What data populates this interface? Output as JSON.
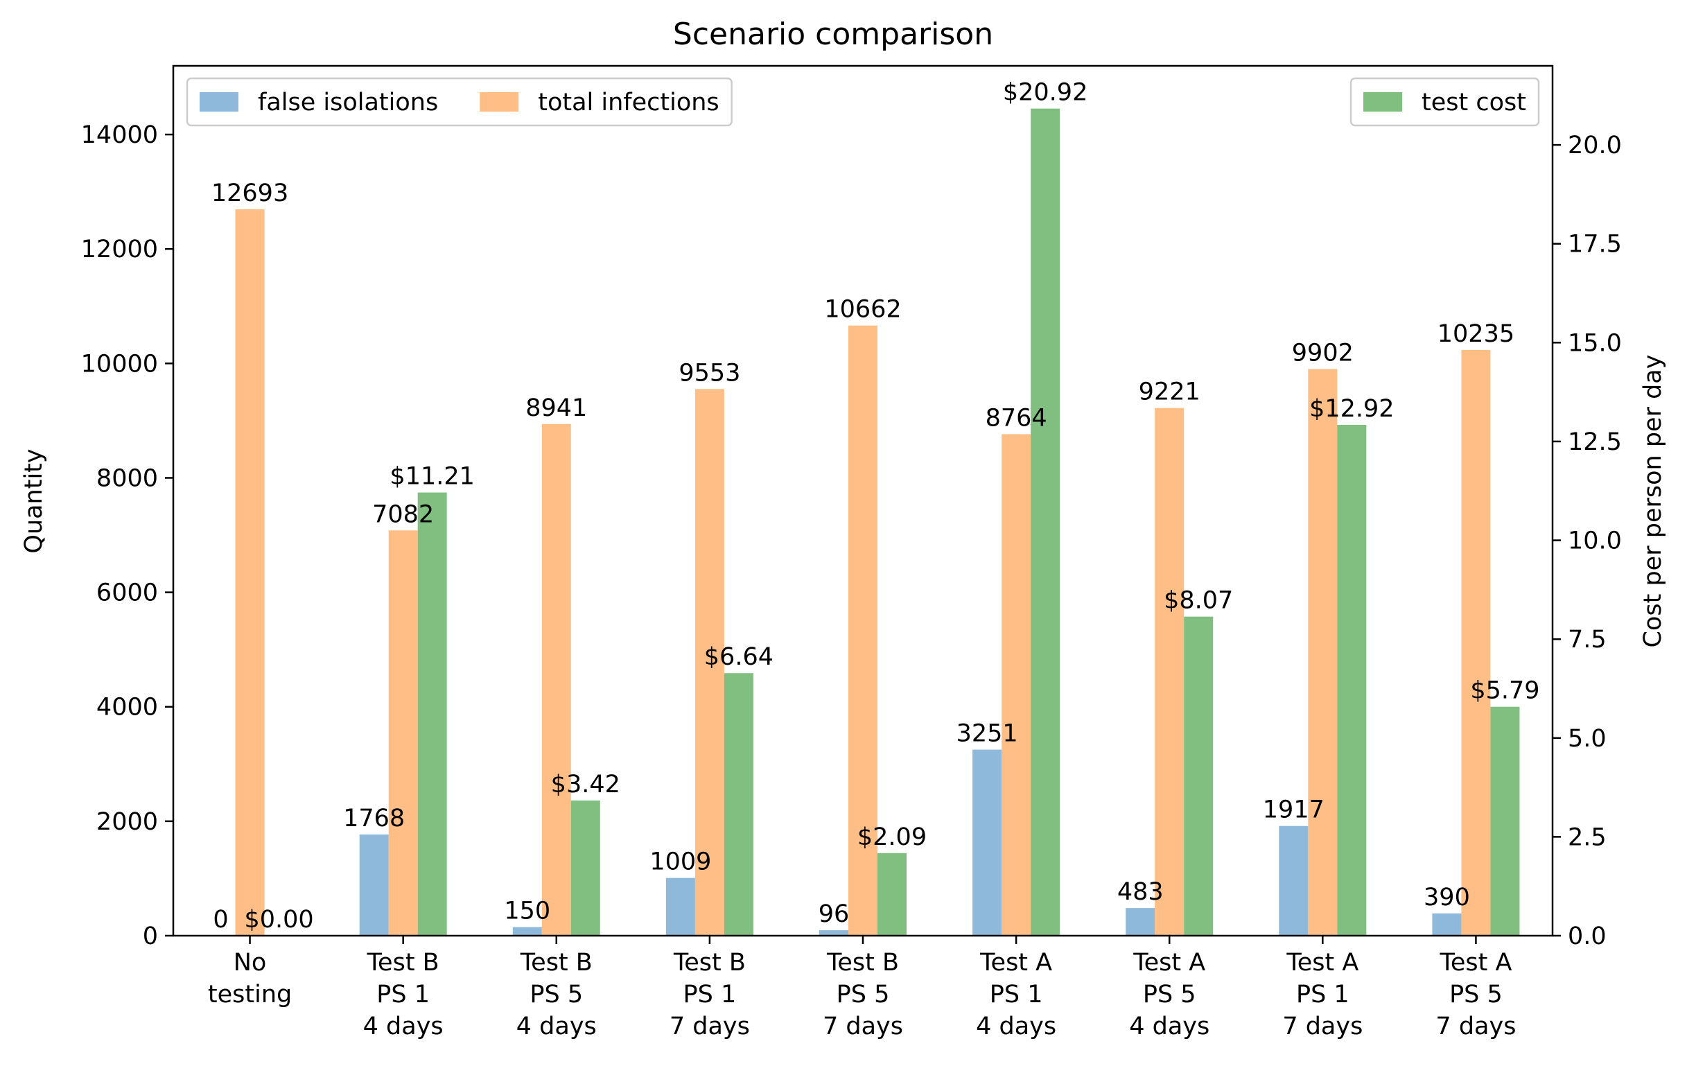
{
  "chart_data": {
    "type": "bar",
    "title": "Scenario comparison",
    "xlabel": "",
    "ylabel": "Quantity",
    "ylabel_right": "Cost per person per day",
    "ylim": [
      0,
      15200
    ],
    "ylim_right": [
      0,
      22.0
    ],
    "yticks": [
      0,
      2000,
      4000,
      6000,
      8000,
      10000,
      12000,
      14000
    ],
    "yticks_right": [
      "0.0",
      "2.5",
      "5.0",
      "7.5",
      "10.0",
      "12.5",
      "15.0",
      "17.5",
      "20.0"
    ],
    "categories": [
      [
        "No",
        "testing"
      ],
      [
        "Test B",
        "PS 1",
        "4 days"
      ],
      [
        "Test B",
        "PS 5",
        "4 days"
      ],
      [
        "Test B",
        "PS 1",
        "7 days"
      ],
      [
        "Test B",
        "PS 5",
        "7 days"
      ],
      [
        "Test A",
        "PS 1",
        "4 days"
      ],
      [
        "Test A",
        "PS 5",
        "4 days"
      ],
      [
        "Test A",
        "PS 1",
        "7 days"
      ],
      [
        "Test A",
        "PS 5",
        "7 days"
      ]
    ],
    "series": [
      {
        "name": "false isolations",
        "axis": "left",
        "color": "#8fb9da",
        "values": [
          0,
          1768,
          150,
          1009,
          96,
          3251,
          483,
          1917,
          390
        ],
        "labels": [
          "0",
          "1768",
          "150",
          "1009",
          "96",
          "3251",
          "483",
          "1917",
          "390"
        ]
      },
      {
        "name": "total infections",
        "axis": "left",
        "color": "#ffbe86",
        "values": [
          12693,
          7082,
          8941,
          9553,
          10662,
          8764,
          9221,
          9902,
          10235
        ],
        "labels": [
          "12693",
          "7082",
          "8941",
          "9553",
          "10662",
          "8764",
          "9221",
          "9902",
          "10235"
        ]
      },
      {
        "name": "test cost",
        "axis": "right",
        "color": "#80bf80",
        "values": [
          0.0,
          11.21,
          3.42,
          6.64,
          2.09,
          20.92,
          8.07,
          12.92,
          5.79
        ],
        "labels": [
          "$0.00",
          "$11.21",
          "$3.42",
          "$6.64",
          "$2.09",
          "$20.92",
          "$8.07",
          "$12.92",
          "$5.79"
        ]
      }
    ],
    "legend_left": {
      "placement": "upper-left",
      "entries": [
        "false isolations",
        "total infections"
      ]
    },
    "legend_right": {
      "placement": "upper-right",
      "entries": [
        "test cost"
      ]
    }
  }
}
